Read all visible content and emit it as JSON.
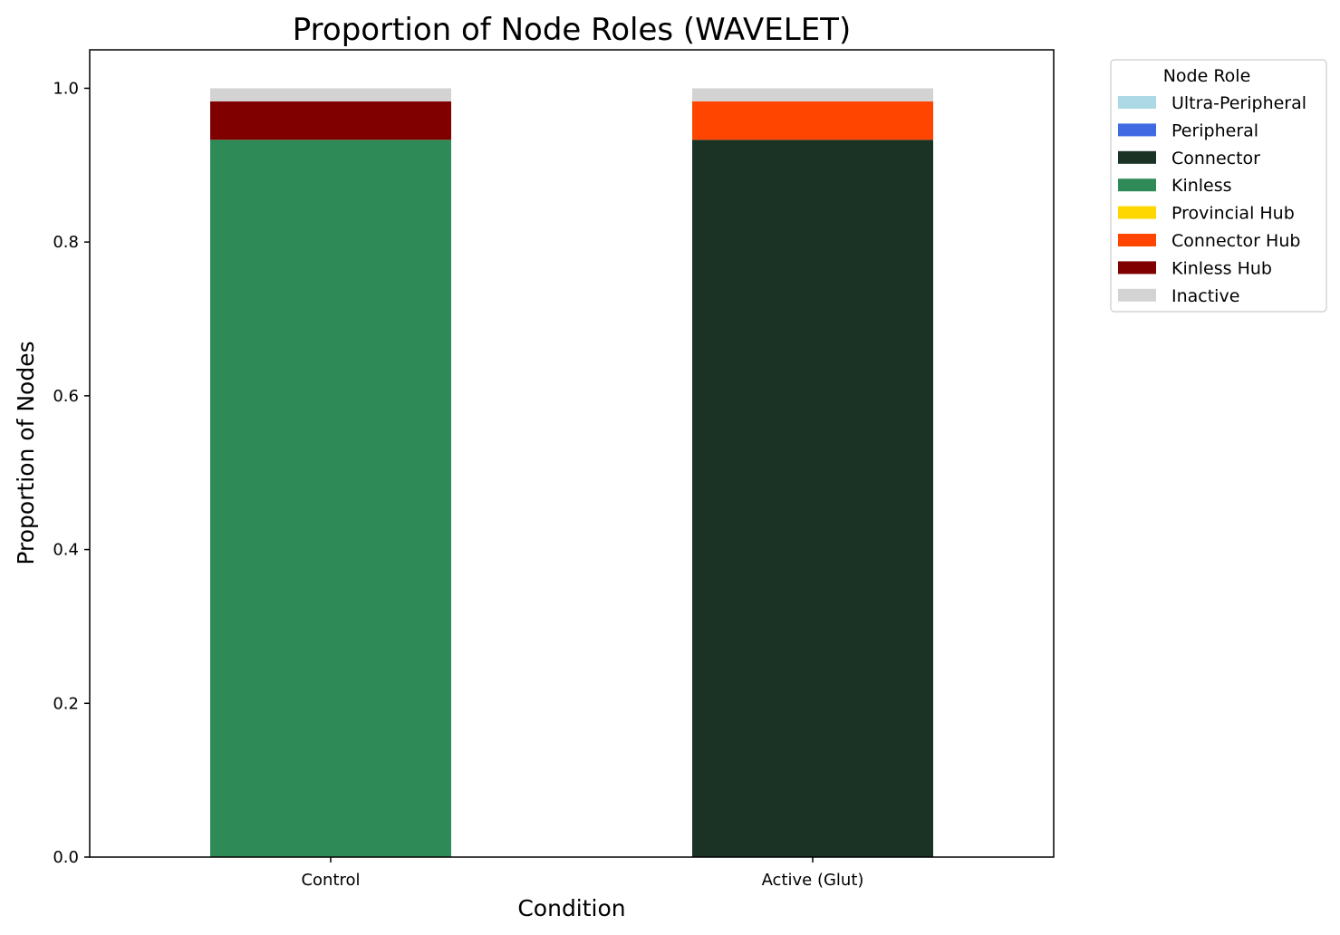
{
  "chart_data": {
    "type": "bar",
    "stacked": true,
    "title": "Proportion of Node Roles (WAVELET)",
    "xlabel": "Condition",
    "ylabel": "Proportion of Nodes",
    "categories": [
      "Control",
      "Active (Glut)"
    ],
    "ylim": [
      0,
      1.05
    ],
    "yticks": [
      "0.0",
      "0.2",
      "0.4",
      "0.6",
      "0.8",
      "1.0"
    ],
    "grid": false,
    "legend": {
      "title": "Node Role",
      "placement": "outside upper right"
    },
    "series": [
      {
        "name": "Ultra-Peripheral",
        "color": "#add8e6",
        "values": [
          0,
          0
        ]
      },
      {
        "name": "Peripheral",
        "color": "#4169e1",
        "values": [
          0,
          0
        ]
      },
      {
        "name": "Connector",
        "color": "#1a3324",
        "values": [
          0,
          0.933
        ]
      },
      {
        "name": "Kinless",
        "color": "#2e8b57",
        "values": [
          0.933,
          0
        ]
      },
      {
        "name": "Provincial Hub",
        "color": "#ffd700",
        "values": [
          0,
          0
        ]
      },
      {
        "name": "Connector Hub",
        "color": "#ff4500",
        "values": [
          0,
          0.05
        ]
      },
      {
        "name": "Kinless Hub",
        "color": "#800000",
        "values": [
          0.05,
          0
        ]
      },
      {
        "name": "Inactive",
        "color": "#d3d3d3",
        "values": [
          0.017,
          0.017
        ]
      }
    ]
  }
}
